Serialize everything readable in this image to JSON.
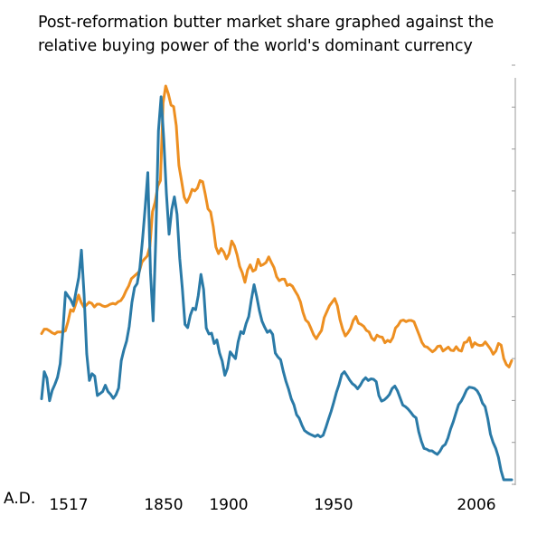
{
  "title_line1": "Post-reformation butter market share graphed against the",
  "title_line2": "relative buying power of the world's dominant currency",
  "chart_data": {
    "type": "line",
    "x_prefix_label": "A.D.",
    "x_tick_labels": [
      "1517",
      "1850",
      "1900",
      "1950",
      "2006"
    ],
    "ylim": [
      0,
      100
    ],
    "y_ticks": 10,
    "colors": {
      "orange": "#ED8F21",
      "blue": "#2A7AA7",
      "axis": "#999999"
    },
    "series": [
      {
        "color": "orange",
        "values": [
          37.7,
          38.8,
          38.8,
          38.4,
          37.9,
          37.6,
          38.1,
          38.1,
          38.1,
          38.4,
          40.7,
          43.7,
          43.3,
          45.3,
          47.4,
          45.5,
          44.4,
          44.9,
          45.6,
          45.3,
          44.4,
          45.1,
          45.1,
          44.7,
          44.5,
          44.7,
          45.1,
          45.3,
          45.1,
          45.7,
          46.0,
          47.0,
          48.5,
          49.7,
          51.5,
          52.1,
          52.7,
          53.3,
          55.7,
          56.5,
          57.2,
          59.6,
          68.4,
          70.8,
          74.8,
          76.2,
          95.7,
          100.0,
          98.0,
          95.2,
          94.8,
          90.0,
          80.0,
          76.1,
          72.0,
          70.7,
          72.1,
          74.0,
          73.6,
          74.3,
          76.2,
          75.9,
          72.7,
          69.1,
          68.3,
          64.6,
          59.5,
          57.8,
          59.1,
          58.2,
          56.5,
          57.8,
          61.0,
          59.8,
          57.6,
          54.6,
          53.0,
          50.6,
          53.7,
          55.0,
          53.4,
          53.8,
          56.4,
          54.8,
          55.1,
          55.6,
          57.0,
          55.6,
          54.3,
          52.0,
          51.0,
          51.4,
          51.4,
          49.8,
          50.1,
          49.6,
          48.4,
          47.3,
          45.7,
          43.0,
          41.1,
          40.5,
          39.0,
          37.4,
          36.4,
          37.5,
          38.5,
          41.7,
          43.2,
          44.7,
          45.6,
          46.5,
          44.7,
          41.2,
          38.8,
          37.1,
          37.9,
          39.0,
          41.0,
          42.0,
          40.3,
          40.0,
          39.5,
          38.5,
          38.1,
          36.6,
          36.0,
          37.3,
          36.9,
          36.8,
          35.4,
          36.0,
          35.6,
          36.7,
          39.1,
          39.8,
          40.9,
          41.1,
          40.7,
          41.0,
          41.0,
          40.7,
          39.0,
          37.3,
          35.5,
          34.5,
          34.3,
          33.7,
          33.1,
          33.6,
          34.5,
          34.6,
          33.3,
          33.8,
          34.3,
          33.5,
          33.4,
          34.4,
          33.5,
          33.3,
          35.4,
          35.6,
          36.7,
          34.3,
          35.4,
          34.9,
          34.7,
          34.8,
          35.6,
          34.7,
          33.8,
          32.5,
          33.3,
          35.2,
          34.8,
          31.4,
          29.9,
          29.3,
          30.9
        ]
      },
      {
        "color": "blue",
        "values": [
          21.3,
          28.1,
          26.5,
          20.8,
          23.4,
          24.9,
          26.7,
          30.1,
          38.1,
          48.1,
          47.1,
          46.2,
          44.7,
          48.4,
          51.8,
          58.7,
          47.5,
          32.6,
          25.9,
          27.6,
          27.0,
          22.1,
          22.6,
          23.1,
          24.7,
          23.1,
          22.4,
          21.4,
          22.3,
          24.0,
          30.9,
          33.6,
          35.8,
          39.5,
          45.5,
          49.3,
          50.3,
          54.2,
          61.3,
          69.4,
          78.2,
          53.0,
          40.9,
          61.6,
          88.7,
          97.3,
          86.6,
          72.9,
          62.7,
          68.9,
          72.1,
          67.7,
          56.7,
          49.0,
          40.0,
          39.2,
          42.3,
          44.1,
          43.7,
          47.3,
          52.6,
          48.8,
          39.1,
          37.6,
          37.8,
          35.2,
          36.1,
          32.8,
          30.8,
          27.2,
          29.0,
          33.1,
          32.2,
          31.4,
          35.6,
          38.2,
          37.7,
          40.2,
          42.0,
          46.3,
          50.0,
          47.0,
          43.5,
          40.8,
          39.3,
          38.0,
          38.5,
          37.5,
          32.8,
          31.8,
          31.1,
          28.2,
          25.7,
          23.7,
          21.3,
          19.8,
          17.3,
          16.4,
          14.7,
          13.3,
          12.8,
          12.4,
          12.1,
          11.8,
          12.2,
          11.7,
          12.1,
          14.0,
          16.1,
          18.1,
          20.4,
          22.9,
          24.9,
          27.4,
          28.1,
          27.1,
          26.0,
          25.1,
          24.6,
          23.8,
          24.7,
          25.9,
          26.6,
          25.9,
          26.3,
          26.2,
          25.6,
          22.1,
          20.7,
          21.0,
          21.6,
          22.4,
          23.9,
          24.5,
          23.3,
          21.5,
          19.7,
          19.3,
          18.7,
          17.9,
          17.0,
          16.5,
          13.0,
          10.6,
          8.8,
          8.6,
          8.2,
          8.2,
          7.7,
          7.3,
          8.1,
          9.3,
          9.8,
          11.4,
          13.7,
          15.5,
          17.7,
          19.8,
          20.7,
          22.0,
          23.5,
          24.2,
          24.1,
          23.9,
          23.3,
          22.1,
          20.2,
          19.3,
          16.3,
          12.4,
          10.3,
          8.8,
          6.6,
          3.2,
          0.9,
          0.9,
          0.9,
          0.9
        ]
      }
    ]
  }
}
